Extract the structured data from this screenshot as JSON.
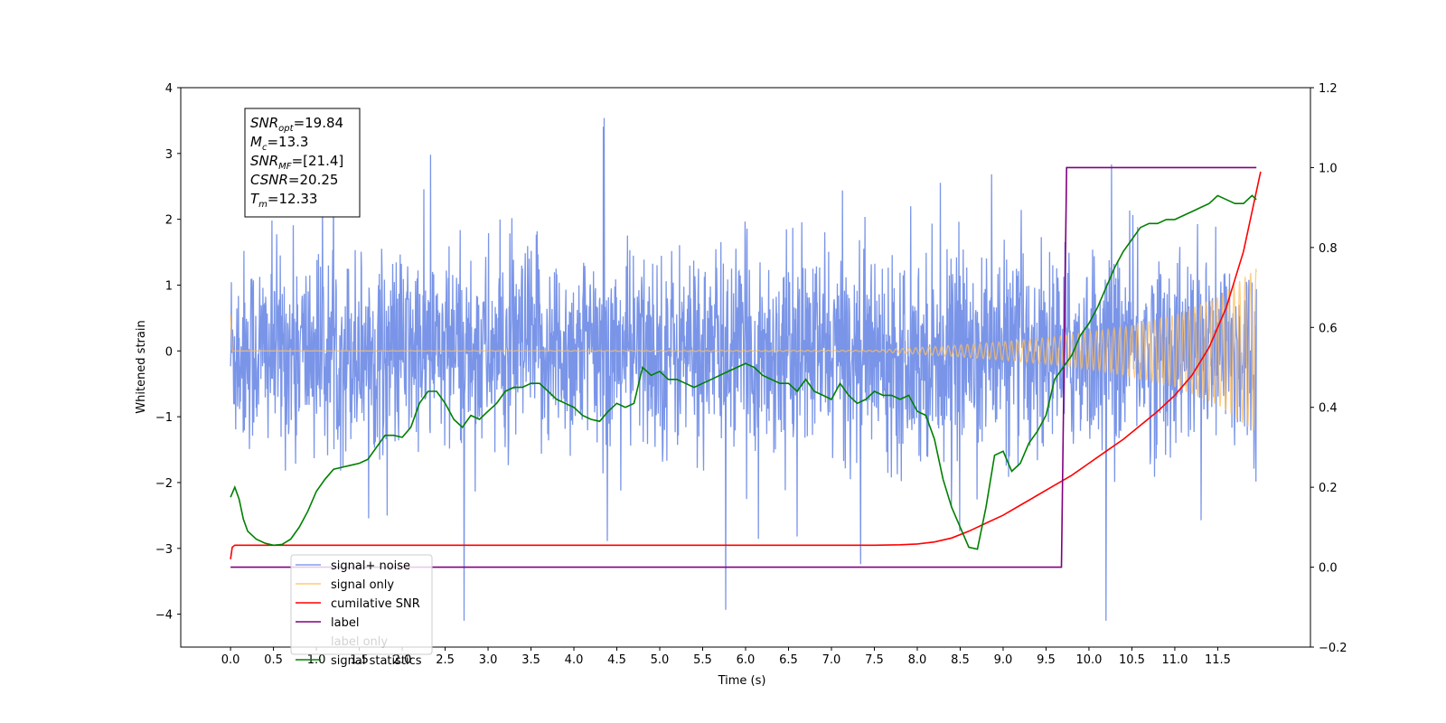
{
  "chart_data": {
    "type": "line",
    "xlabel": "Time (s)",
    "ylabel": "Whitened strain",
    "xlim": [
      -0.58,
      12.58
    ],
    "ylim": [
      -4.5,
      4.0
    ],
    "y2lim": [
      -0.2,
      1.2
    ],
    "x_ticks": [
      0.0,
      0.5,
      1.0,
      1.5,
      2.0,
      2.5,
      3.0,
      3.5,
      4.0,
      4.5,
      5.0,
      5.5,
      6.0,
      6.5,
      7.0,
      7.5,
      8.0,
      8.5,
      9.0,
      9.5,
      10.0,
      10.5,
      11.0,
      11.5
    ],
    "x_tick_labels": [
      "0.0",
      "0.5",
      "1.0",
      "1.5",
      "2.0",
      "2.5",
      "3.0",
      "3.5",
      "4.0",
      "4.5",
      "5.0",
      "5.5",
      "6.0",
      "6.5",
      "7.0",
      "7.5",
      "8.0",
      "8.5",
      "9.0",
      "9.5",
      "10.0",
      "10.5",
      "11.0",
      "11.5"
    ],
    "y_ticks": [
      4,
      3,
      2,
      1,
      0,
      -1,
      -2,
      -3,
      -4
    ],
    "y_tick_labels": [
      "4",
      "3",
      "2",
      "1",
      "0",
      "−1",
      "−2",
      "−3",
      "−4"
    ],
    "y2_ticks": [
      1.2,
      1.0,
      0.8,
      0.6,
      0.4,
      0.2,
      0.0,
      -0.2
    ],
    "y2_tick_labels": [
      "1.2",
      "1.0",
      "0.8",
      "0.6",
      "0.4",
      "0.2",
      "0.0",
      "−0.2"
    ],
    "grid": false,
    "legend_placement": "lower-left",
    "annotation": [
      {
        "main": "SNR",
        "sub": "opt",
        "rest": "=19.84"
      },
      {
        "main": "M",
        "sub": "c",
        "rest": "=13.3"
      },
      {
        "main": "SNR",
        "sub": "MF",
        "rest": "=[21.4]"
      },
      {
        "main": "CSNR",
        "sub": "",
        "rest": "=20.25"
      },
      {
        "main": "T",
        "sub": "m",
        "rest": "=12.33"
      }
    ],
    "series": [
      {
        "name": "signal+ noise",
        "color": "#6b8ae6",
        "axis": "left",
        "note": "dense noise trace, typical amplitude about ±1.3, spikes up to about 3.6 and down to about -4.1"
      },
      {
        "name": "signal only",
        "color": "#ffbf60",
        "axis": "left",
        "envelope_t": [
          0,
          7.5,
          8.0,
          8.5,
          9.0,
          9.5,
          10.0,
          10.5,
          11.0,
          11.5,
          12.0
        ],
        "envelope_a": [
          0,
          0.01,
          0.05,
          0.09,
          0.14,
          0.2,
          0.28,
          0.39,
          0.55,
          0.82,
          1.3
        ]
      },
      {
        "name": "cumilative SNR",
        "color": "#ff0000",
        "axis": "right",
        "t": [
          0.0,
          0.02,
          0.05,
          7.5,
          7.8,
          8.0,
          8.2,
          8.4,
          8.6,
          8.8,
          9.0,
          9.2,
          9.4,
          9.6,
          9.8,
          10.0,
          10.2,
          10.4,
          10.6,
          10.8,
          11.0,
          11.2,
          11.4,
          11.6,
          11.8,
          12.0
        ],
        "v": [
          0.02,
          0.05,
          0.055,
          0.055,
          0.056,
          0.058,
          0.063,
          0.073,
          0.09,
          0.11,
          0.13,
          0.155,
          0.18,
          0.205,
          0.23,
          0.26,
          0.29,
          0.32,
          0.355,
          0.39,
          0.43,
          0.48,
          0.55,
          0.65,
          0.79,
          0.99
        ]
      },
      {
        "name": "label",
        "color": "#800080",
        "axis": "right",
        "t": [
          0.0,
          9.68,
          9.74,
          11.95
        ],
        "v": [
          0.0,
          0.0,
          1.0,
          1.0
        ]
      },
      {
        "name": "label only",
        "color": "#800080",
        "axis": "right",
        "hidden": true
      },
      {
        "name": "signal statistics",
        "color": "#008000",
        "axis": "right",
        "t": [
          0.0,
          0.05,
          0.1,
          0.15,
          0.2,
          0.3,
          0.4,
          0.5,
          0.6,
          0.7,
          0.8,
          0.9,
          1.0,
          1.1,
          1.2,
          1.3,
          1.4,
          1.5,
          1.6,
          1.7,
          1.8,
          1.9,
          2.0,
          2.1,
          2.2,
          2.3,
          2.4,
          2.5,
          2.6,
          2.7,
          2.8,
          2.9,
          3.0,
          3.1,
          3.2,
          3.3,
          3.4,
          3.5,
          3.6,
          3.7,
          3.8,
          3.9,
          4.0,
          4.1,
          4.2,
          4.3,
          4.4,
          4.5,
          4.6,
          4.7,
          4.8,
          4.9,
          5.0,
          5.1,
          5.2,
          5.3,
          5.4,
          5.5,
          5.6,
          5.7,
          5.8,
          5.9,
          6.0,
          6.1,
          6.2,
          6.3,
          6.4,
          6.5,
          6.6,
          6.7,
          6.8,
          6.9,
          7.0,
          7.1,
          7.2,
          7.3,
          7.4,
          7.5,
          7.6,
          7.7,
          7.8,
          7.9,
          8.0,
          8.1,
          8.2,
          8.3,
          8.4,
          8.5,
          8.6,
          8.7,
          8.8,
          8.9,
          9.0,
          9.1,
          9.2,
          9.3,
          9.4,
          9.5,
          9.6,
          9.7,
          9.8,
          9.9,
          10.0,
          10.1,
          10.2,
          10.3,
          10.4,
          10.5,
          10.6,
          10.7,
          10.8,
          10.9,
          11.0,
          11.1,
          11.2,
          11.3,
          11.4,
          11.5,
          11.6,
          11.7,
          11.8,
          11.9,
          11.95
        ],
        "v": [
          0.175,
          0.2,
          0.17,
          0.12,
          0.09,
          0.07,
          0.06,
          0.055,
          0.057,
          0.07,
          0.1,
          0.14,
          0.19,
          0.22,
          0.245,
          0.25,
          0.255,
          0.26,
          0.27,
          0.3,
          0.33,
          0.33,
          0.325,
          0.35,
          0.41,
          0.44,
          0.44,
          0.41,
          0.37,
          0.35,
          0.38,
          0.37,
          0.39,
          0.41,
          0.44,
          0.45,
          0.45,
          0.46,
          0.46,
          0.44,
          0.42,
          0.41,
          0.4,
          0.38,
          0.37,
          0.365,
          0.39,
          0.41,
          0.4,
          0.41,
          0.5,
          0.48,
          0.49,
          0.47,
          0.47,
          0.46,
          0.45,
          0.46,
          0.47,
          0.48,
          0.49,
          0.5,
          0.51,
          0.5,
          0.48,
          0.47,
          0.46,
          0.46,
          0.44,
          0.47,
          0.44,
          0.43,
          0.42,
          0.46,
          0.43,
          0.41,
          0.42,
          0.44,
          0.43,
          0.43,
          0.42,
          0.43,
          0.39,
          0.38,
          0.32,
          0.22,
          0.15,
          0.1,
          0.05,
          0.045,
          0.15,
          0.28,
          0.29,
          0.24,
          0.26,
          0.31,
          0.34,
          0.38,
          0.47,
          0.5,
          0.53,
          0.58,
          0.61,
          0.65,
          0.7,
          0.75,
          0.79,
          0.82,
          0.85,
          0.86,
          0.86,
          0.87,
          0.87,
          0.88,
          0.89,
          0.9,
          0.91,
          0.93,
          0.92,
          0.91,
          0.91,
          0.93,
          0.92,
          0.9
        ]
      }
    ]
  }
}
